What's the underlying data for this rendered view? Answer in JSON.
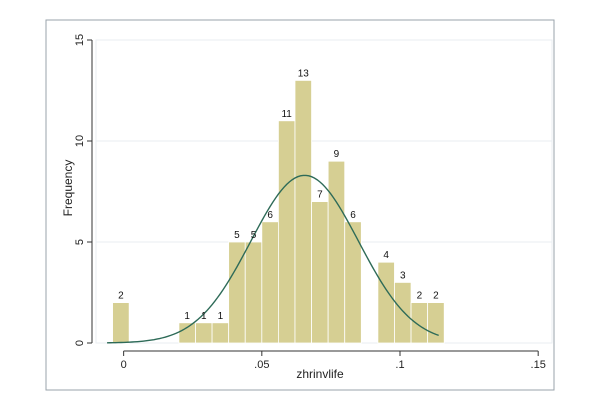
{
  "chart_data": {
    "type": "bar",
    "subtype": "histogram-with-density-curve",
    "xlabel": "zhrinvlife",
    "ylabel": "Frequency",
    "xlim": [
      -0.01,
      0.155
    ],
    "ylim": [
      0,
      15
    ],
    "x_ticks": [
      {
        "value": 0,
        "label": "0"
      },
      {
        "value": 0.05,
        "label": ".05"
      },
      {
        "value": 0.1,
        "label": ".1"
      },
      {
        "value": 0.15,
        "label": ".15"
      }
    ],
    "y_ticks": [
      {
        "value": 0,
        "label": "0"
      },
      {
        "value": 5,
        "label": "5"
      },
      {
        "value": 10,
        "label": "10"
      },
      {
        "value": 15,
        "label": "15"
      }
    ],
    "bin_width": 0.006,
    "bins": [
      {
        "start": -0.004,
        "value": 2,
        "label": "2"
      },
      {
        "start": 0.02,
        "value": 1,
        "label": "1"
      },
      {
        "start": 0.026,
        "value": 1,
        "label": "1"
      },
      {
        "start": 0.032,
        "value": 1,
        "label": "1"
      },
      {
        "start": 0.038,
        "value": 5,
        "label": "5"
      },
      {
        "start": 0.044,
        "value": 5,
        "label": "5"
      },
      {
        "start": 0.05,
        "value": 6,
        "label": "6"
      },
      {
        "start": 0.056,
        "value": 11,
        "label": "11"
      },
      {
        "start": 0.062,
        "value": 13,
        "label": "13"
      },
      {
        "start": 0.068,
        "value": 7,
        "label": "7"
      },
      {
        "start": 0.074,
        "value": 9,
        "label": "9"
      },
      {
        "start": 0.08,
        "value": 6,
        "label": "6"
      },
      {
        "start": 0.092,
        "value": 4,
        "label": "4"
      },
      {
        "start": 0.098,
        "value": 3,
        "label": "3"
      },
      {
        "start": 0.104,
        "value": 2,
        "label": "2"
      },
      {
        "start": 0.11,
        "value": 2,
        "label": "2"
      }
    ],
    "density_curve": {
      "peak_x": 0.0655,
      "peak_y": 8.3,
      "sd": 0.0195,
      "x_range": [
        -0.006,
        0.114
      ]
    },
    "grid": true,
    "colors": {
      "bar_fill": "#d6cf93",
      "bar_stroke": "#ffffff",
      "curve": "#2e6b58",
      "grid": "#e9eef2",
      "axis": "#333333",
      "plot_border": "#9aa3ab"
    }
  }
}
